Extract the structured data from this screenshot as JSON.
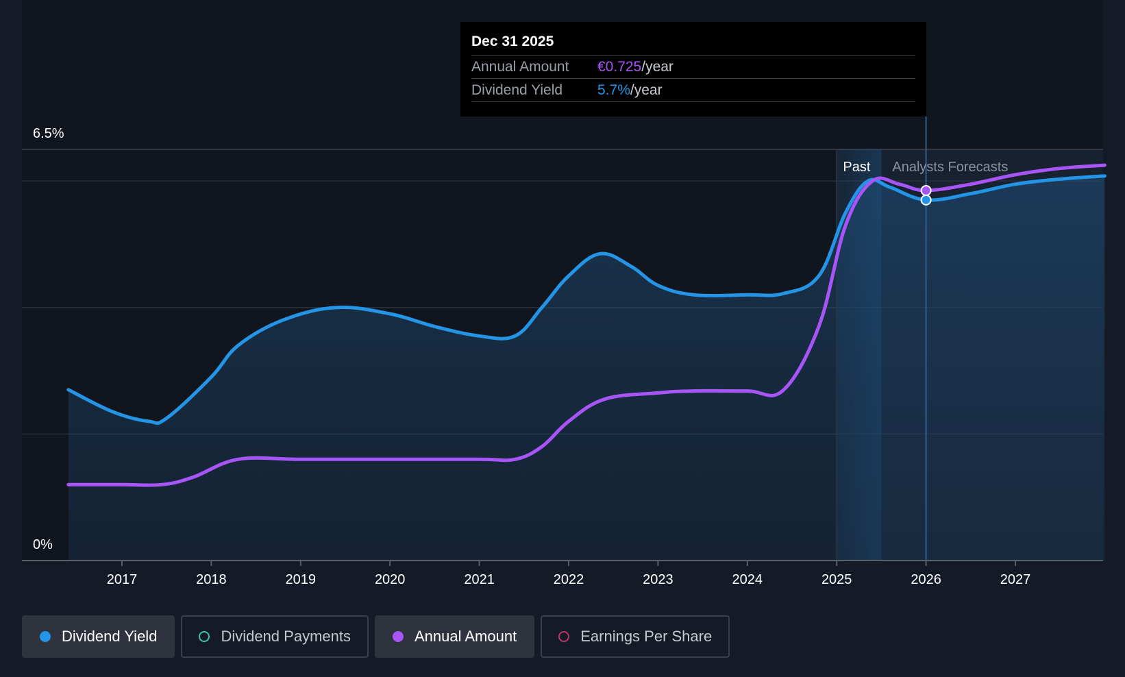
{
  "chart_data": {
    "type": "line",
    "y_axis": {
      "top_label": "6.5%",
      "bottom_label": "0%",
      "ylim": [
        0,
        6.5
      ],
      "unit": "%"
    },
    "x_axis": {
      "tick_labels": [
        "2017",
        "2018",
        "2019",
        "2020",
        "2021",
        "2022",
        "2023",
        "2024",
        "2025",
        "2026",
        "2027"
      ],
      "xlim": [
        2016.0,
        2028.0
      ]
    },
    "regions": {
      "past_label": "Past",
      "forecast_label": "Analysts Forecasts",
      "past_end": 2025.5,
      "forecast_start": 2025.5
    },
    "series": [
      {
        "name": "Dividend Yield",
        "color": "#2394e6",
        "points": [
          [
            2016.4,
            2.7
          ],
          [
            2016.9,
            2.35
          ],
          [
            2017.3,
            2.2
          ],
          [
            2017.5,
            2.25
          ],
          [
            2018.0,
            2.9
          ],
          [
            2018.3,
            3.4
          ],
          [
            2018.8,
            3.8
          ],
          [
            2019.4,
            4.0
          ],
          [
            2020.0,
            3.9
          ],
          [
            2020.5,
            3.7
          ],
          [
            2021.0,
            3.55
          ],
          [
            2021.4,
            3.55
          ],
          [
            2021.7,
            4.0
          ],
          [
            2022.0,
            4.5
          ],
          [
            2022.35,
            4.85
          ],
          [
            2022.7,
            4.65
          ],
          [
            2023.0,
            4.35
          ],
          [
            2023.4,
            4.2
          ],
          [
            2024.0,
            4.2
          ],
          [
            2024.4,
            4.22
          ],
          [
            2024.8,
            4.5
          ],
          [
            2025.1,
            5.5
          ],
          [
            2025.35,
            6.0
          ],
          [
            2025.6,
            5.9
          ],
          [
            2026.0,
            5.7
          ],
          [
            2026.5,
            5.8
          ],
          [
            2027.0,
            5.95
          ],
          [
            2027.5,
            6.03
          ],
          [
            2028.0,
            6.08
          ]
        ]
      },
      {
        "name": "Annual Amount",
        "color": "#a855f7",
        "points": [
          [
            2016.4,
            1.2
          ],
          [
            2017.0,
            1.2
          ],
          [
            2017.45,
            1.2
          ],
          [
            2017.8,
            1.32
          ],
          [
            2018.3,
            1.6
          ],
          [
            2019.0,
            1.6
          ],
          [
            2020.0,
            1.6
          ],
          [
            2021.0,
            1.6
          ],
          [
            2021.4,
            1.6
          ],
          [
            2021.7,
            1.8
          ],
          [
            2022.0,
            2.2
          ],
          [
            2022.4,
            2.55
          ],
          [
            2023.0,
            2.65
          ],
          [
            2023.4,
            2.68
          ],
          [
            2024.0,
            2.68
          ],
          [
            2024.4,
            2.69
          ],
          [
            2024.8,
            3.7
          ],
          [
            2025.1,
            5.3
          ],
          [
            2025.4,
            6.0
          ],
          [
            2025.7,
            5.95
          ],
          [
            2026.0,
            5.85
          ],
          [
            2026.5,
            5.95
          ],
          [
            2027.0,
            6.1
          ],
          [
            2027.5,
            6.2
          ],
          [
            2028.0,
            6.25
          ]
        ]
      }
    ],
    "highlight": {
      "x": 2026.0,
      "yield_value": 5.7
    }
  },
  "tooltip": {
    "date": "Dec 31 2025",
    "rows": [
      {
        "key": "Annual Amount",
        "value": "€0.725",
        "unit": "/year"
      },
      {
        "key": "Dividend Yield",
        "value": "5.7%",
        "unit": "/year"
      }
    ]
  },
  "legend": [
    {
      "label": "Dividend Yield",
      "color": "#2394e6",
      "active": true,
      "filled": true
    },
    {
      "label": "Dividend Payments",
      "color": "#3fc1b0",
      "active": false,
      "filled": false
    },
    {
      "label": "Annual Amount",
      "color": "#a855f7",
      "active": true,
      "filled": true
    },
    {
      "label": "Earnings Per Share",
      "color": "#c2336b",
      "active": false,
      "filled": false
    }
  ]
}
